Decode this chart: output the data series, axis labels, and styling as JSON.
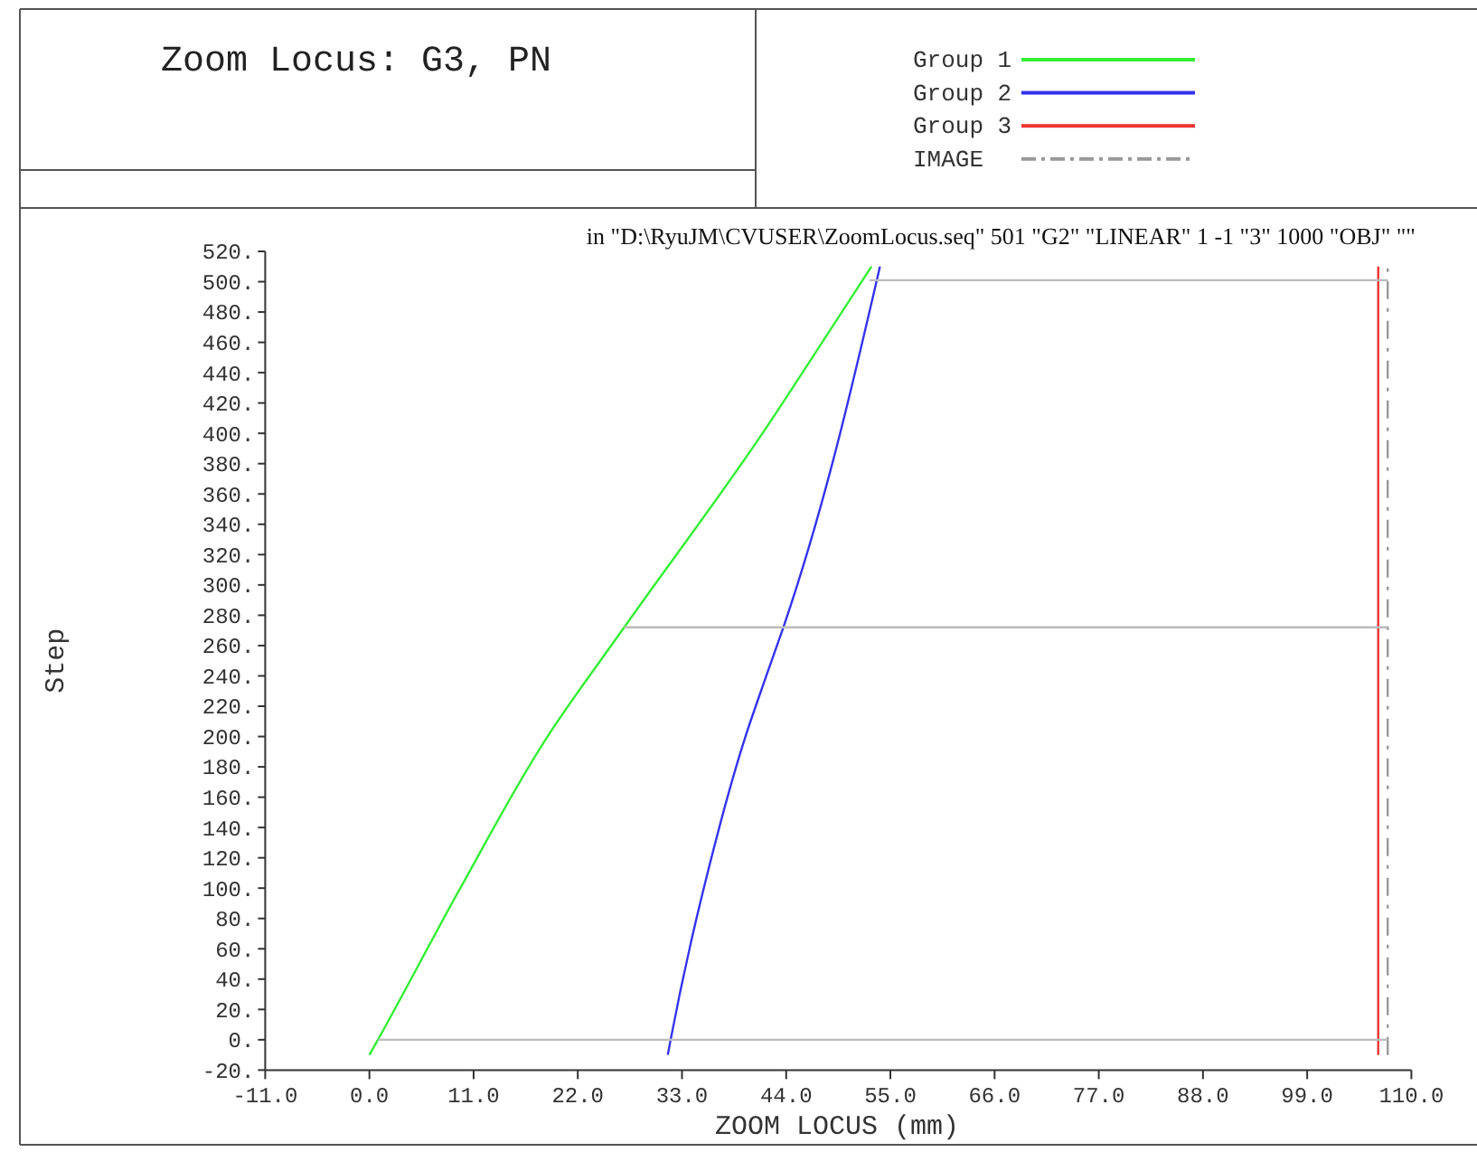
{
  "chart_data": {
    "type": "line",
    "title": "Zoom Locus: G3, PN",
    "xlabel": "ZOOM LOCUS (mm)",
    "ylabel": "Step",
    "annotations": [
      "in \"D:\\RyuJM\\CVUSER\\ZoomLocus.seq\"  501 \"G2\" \"LINEAR\" 1 -1 \"3\" 1000 \"OBJ\" \"\""
    ],
    "xlim": [
      -11,
      110
    ],
    "ylim": [
      -20,
      520
    ],
    "xticks": [
      {
        "value": -11,
        "label": "-11.0"
      },
      {
        "value": 0,
        "label": "0.0"
      },
      {
        "value": 11,
        "label": "11.0"
      },
      {
        "value": 22,
        "label": "22.0"
      },
      {
        "value": 33,
        "label": "33.0"
      },
      {
        "value": 44,
        "label": "44.0"
      },
      {
        "value": 55,
        "label": "55.0"
      },
      {
        "value": 66,
        "label": "66.0"
      },
      {
        "value": 77,
        "label": "77.0"
      },
      {
        "value": 88,
        "label": "88.0"
      },
      {
        "value": 99,
        "label": "99.0"
      },
      {
        "value": 110,
        "label": "110.0"
      }
    ],
    "yticks": [
      {
        "value": -20,
        "label": "-20."
      },
      {
        "value": 0,
        "label": "0."
      },
      {
        "value": 20,
        "label": "20."
      },
      {
        "value": 40,
        "label": "40."
      },
      {
        "value": 60,
        "label": "60."
      },
      {
        "value": 80,
        "label": "80."
      },
      {
        "value": 100,
        "label": "100."
      },
      {
        "value": 120,
        "label": "120."
      },
      {
        "value": 140,
        "label": "140."
      },
      {
        "value": 160,
        "label": "160."
      },
      {
        "value": 180,
        "label": "180."
      },
      {
        "value": 200,
        "label": "200."
      },
      {
        "value": 220,
        "label": "220."
      },
      {
        "value": 240,
        "label": "240."
      },
      {
        "value": 260,
        "label": "260."
      },
      {
        "value": 280,
        "label": "280."
      },
      {
        "value": 300,
        "label": "300."
      },
      {
        "value": 320,
        "label": "320."
      },
      {
        "value": 340,
        "label": "340."
      },
      {
        "value": 360,
        "label": "360."
      },
      {
        "value": 380,
        "label": "380."
      },
      {
        "value": 400,
        "label": "400."
      },
      {
        "value": 420,
        "label": "420."
      },
      {
        "value": 440,
        "label": "440."
      },
      {
        "value": 460,
        "label": "460."
      },
      {
        "value": 480,
        "label": "480."
      },
      {
        "value": 500,
        "label": "500."
      },
      {
        "value": 520,
        "label": "520."
      }
    ],
    "grid": false,
    "legend": "top right",
    "marker": "none",
    "series": [
      {
        "name": "Group 1",
        "color": "#33ee33",
        "x": [
          0,
          0.9,
          9.6,
          18.8,
          26.9,
          41.5,
          47.8,
          53.0
        ],
        "values": [
          -10,
          0,
          100,
          200,
          272,
          400,
          460,
          510
        ]
      },
      {
        "name": "Group 2",
        "color": "#3333ee",
        "x": [
          31.5,
          31.8,
          35.3,
          39.7,
          41.9,
          43.7,
          53.9
        ],
        "values": [
          -10,
          0,
          100,
          200,
          240,
          272,
          510
        ]
      },
      {
        "name": "Group 3",
        "color": "#ee3333",
        "x": [
          106.5,
          106.5
        ],
        "values": [
          -10,
          510
        ]
      },
      {
        "name": "IMAGE",
        "color": "#999999",
        "line_style": "dashed",
        "x": [
          107.5,
          107.5
        ],
        "values": [
          -10,
          510
        ]
      },
      {
        "color": "#bbbbbb",
        "x": [
          0.9,
          107.5
        ],
        "values": [
          0,
          0
        ]
      },
      {
        "color": "#bbbbbb",
        "x": [
          26.9,
          107.5
        ],
        "values": [
          272,
          272
        ]
      },
      {
        "color": "#bbbbbb",
        "x": [
          52.8,
          107.5
        ],
        "values": [
          501,
          501
        ]
      }
    ]
  }
}
